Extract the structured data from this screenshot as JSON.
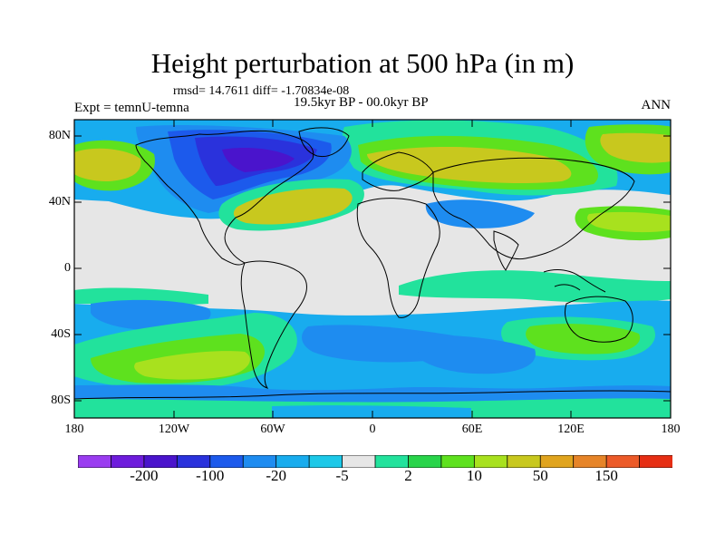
{
  "header": {
    "title": "Height perturbation at 500 hPa (in m)",
    "stats": "rmsd= 14.7611 diff= -1.70834e-08",
    "experiment": "Expt = temnU-temna",
    "period": "19.5kyr BP - 00.0kyr BP",
    "season": "ANN"
  },
  "axes": {
    "latitude_ticks": [
      "80N",
      "40N",
      "0",
      "40S",
      "80S"
    ],
    "longitude_ticks": [
      "180",
      "120W",
      "60W",
      "0",
      "60E",
      "120E",
      "180"
    ]
  },
  "colorbar": {
    "colors": [
      "#9a3cf0",
      "#6e1cdc",
      "#4a14cc",
      "#2a32dc",
      "#1c5aec",
      "#1e8cf0",
      "#18acee",
      "#1cc8e8",
      "#e6e6e6",
      "#22e29c",
      "#28d44a",
      "#5ee11e",
      "#a8e11e",
      "#c8c81e",
      "#e0a41e",
      "#e68428",
      "#ec5a28",
      "#e62e14"
    ],
    "labels": [
      {
        "text": "-200",
        "after_bin": 1
      },
      {
        "text": "-100",
        "after_bin": 3
      },
      {
        "text": "-20",
        "after_bin": 5
      },
      {
        "text": "-5",
        "after_bin": 7
      },
      {
        "text": "2",
        "after_bin": 9
      },
      {
        "text": "10",
        "after_bin": 11
      },
      {
        "text": "50",
        "after_bin": 13
      },
      {
        "text": "150",
        "after_bin": 15
      }
    ]
  },
  "field_colors": {
    "neutral": "#e6e6e6",
    "weak_pos": "#22e29c",
    "pos": "#5ee11e",
    "pos2": "#a8e11e",
    "strong_pos": "#c8c81e",
    "weak_neg": "#18acee",
    "neg": "#1e8cf0",
    "neg2": "#1c5aec",
    "strong_neg": "#2a32dc",
    "very_neg": "#4a14cc"
  }
}
